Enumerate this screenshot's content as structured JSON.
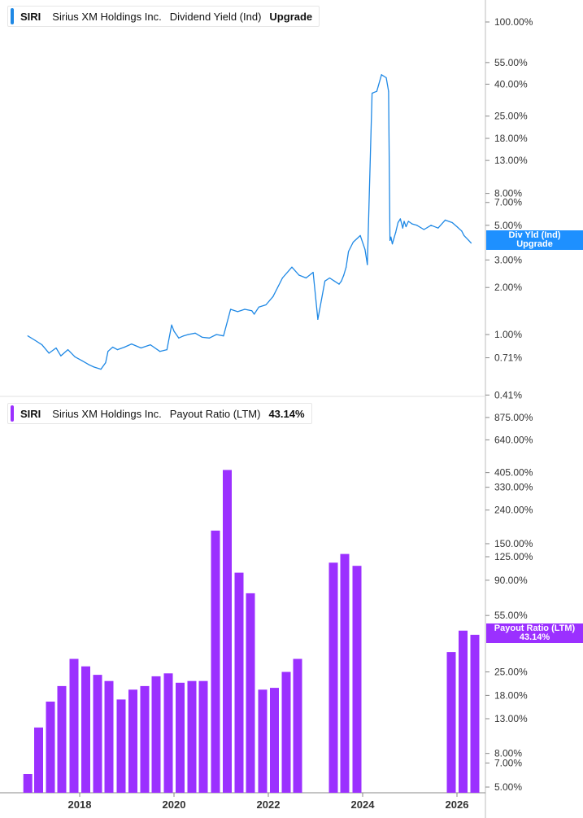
{
  "legends": [
    {
      "ticker": "SIRI",
      "company": "Sirius XM Holdings Inc.",
      "metric": "Dividend Yield (Ind)",
      "value": "Upgrade",
      "color": "#1e88e5"
    },
    {
      "ticker": "SIRI",
      "company": "Sirius XM Holdings Inc.",
      "metric": "Payout Ratio (LTM)",
      "value": "43.14%",
      "color": "#9b30ff"
    }
  ],
  "tags": [
    {
      "line1": "Div Yld (Ind)",
      "line2": "Upgrade",
      "color": "#1e90ff"
    },
    {
      "line1": "Payout Ratio (LTM)",
      "line2": "43.14%",
      "color": "#9b30ff"
    }
  ],
  "chart_data": [
    {
      "type": "line",
      "title": "SIRI Sirius XM Holdings Inc. Dividend Yield (Ind)",
      "series_name": "Dividend Yield (Ind)",
      "yscale": "log",
      "y_ticks": [
        "100.00%",
        "55.00%",
        "40.00%",
        "25.00%",
        "18.00%",
        "13.00%",
        "8.00%",
        "7.00%",
        "5.00%",
        "3.00%",
        "2.00%",
        "1.00%",
        "0.71%",
        "0.41%"
      ],
      "ylim": [
        0.41,
        150
      ],
      "x": [
        2016.9,
        2017.05,
        2017.2,
        2017.35,
        2017.5,
        2017.6,
        2017.75,
        2017.9,
        2018.05,
        2018.2,
        2018.3,
        2018.45,
        2018.55,
        2018.6,
        2018.7,
        2018.8,
        2018.95,
        2019.1,
        2019.3,
        2019.5,
        2019.7,
        2019.85,
        2019.95,
        2020.0,
        2020.1,
        2020.2,
        2020.3,
        2020.45,
        2020.6,
        2020.75,
        2020.9,
        2021.05,
        2021.2,
        2021.35,
        2021.5,
        2021.65,
        2021.7,
        2021.8,
        2021.95,
        2022.1,
        2022.3,
        2022.5,
        2022.65,
        2022.8,
        2022.95,
        2023.05,
        2023.2,
        2023.3,
        2023.4,
        2023.5,
        2023.55,
        2023.6,
        2023.65,
        2023.7,
        2023.8,
        2023.95,
        2024.05,
        2024.1,
        2024.2,
        2024.3,
        2024.4,
        2024.5,
        2024.55,
        2024.58,
        2024.6,
        2024.63,
        2024.7,
        2024.75,
        2024.8,
        2024.85,
        2024.88,
        2024.92,
        2024.97,
        2025.05,
        2025.15,
        2025.3,
        2025.45,
        2025.6,
        2025.75,
        2025.9,
        2026.0,
        2026.1,
        2026.15,
        2026.25,
        2026.3
      ],
      "values": [
        0.98,
        0.92,
        0.86,
        0.76,
        0.82,
        0.73,
        0.8,
        0.72,
        0.68,
        0.64,
        0.62,
        0.6,
        0.66,
        0.78,
        0.83,
        0.8,
        0.83,
        0.87,
        0.82,
        0.86,
        0.78,
        0.8,
        1.15,
        1.05,
        0.95,
        0.98,
        1.0,
        1.02,
        0.96,
        0.95,
        1.0,
        0.98,
        1.45,
        1.4,
        1.45,
        1.42,
        1.35,
        1.5,
        1.55,
        1.75,
        2.3,
        2.7,
        2.4,
        2.3,
        2.5,
        1.25,
        2.2,
        2.3,
        2.2,
        2.1,
        2.2,
        2.4,
        2.7,
        3.4,
        3.9,
        4.3,
        3.5,
        2.8,
        35.0,
        36.0,
        46.0,
        44.0,
        36.0,
        4.0,
        4.2,
        3.8,
        4.5,
        5.2,
        5.5,
        4.8,
        5.3,
        4.9,
        5.3,
        5.1,
        5.0,
        4.7,
        5.0,
        4.8,
        5.4,
        5.2,
        4.9,
        4.6,
        4.3,
        4.0,
        3.85
      ]
    },
    {
      "type": "bar",
      "title": "SIRI Sirius XM Holdings Inc. Payout Ratio (LTM)",
      "series_name": "Payout Ratio (LTM)",
      "yscale": "log",
      "y_ticks": [
        "875.00%",
        "640.00%",
        "405.00%",
        "330.00%",
        "240.00%",
        "150.00%",
        "125.00%",
        "90.00%",
        "55.00%",
        "25.00%",
        "18.00%",
        "13.00%",
        "8.00%",
        "7.00%",
        "5.00%"
      ],
      "ylim": [
        4.5,
        1000
      ],
      "x_ticks": [
        "2018",
        "2020",
        "2022",
        "2024",
        "2026"
      ],
      "x_tick_values": [
        2018,
        2020,
        2022,
        2024,
        2026
      ],
      "x": [
        2016.9,
        2017.13,
        2017.38,
        2017.62,
        2017.88,
        2018.13,
        2018.38,
        2018.62,
        2018.88,
        2019.13,
        2019.38,
        2019.62,
        2019.88,
        2020.13,
        2020.38,
        2020.62,
        2020.88,
        2021.13,
        2021.38,
        2021.62,
        2021.88,
        2022.13,
        2022.38,
        2022.62,
        2023.38,
        2023.62,
        2023.88,
        2025.88,
        2026.13,
        2026.38
      ],
      "values": [
        6.0,
        11.5,
        16.5,
        20.5,
        30.0,
        27.0,
        24.0,
        22.0,
        17.0,
        19.5,
        20.5,
        23.5,
        24.5,
        21.5,
        22.0,
        22.0,
        180.0,
        420.0,
        100.0,
        75.0,
        19.5,
        20.0,
        25.0,
        30.0,
        115.0,
        130.0,
        110.0,
        33.0,
        44.5,
        42.0
      ]
    }
  ]
}
